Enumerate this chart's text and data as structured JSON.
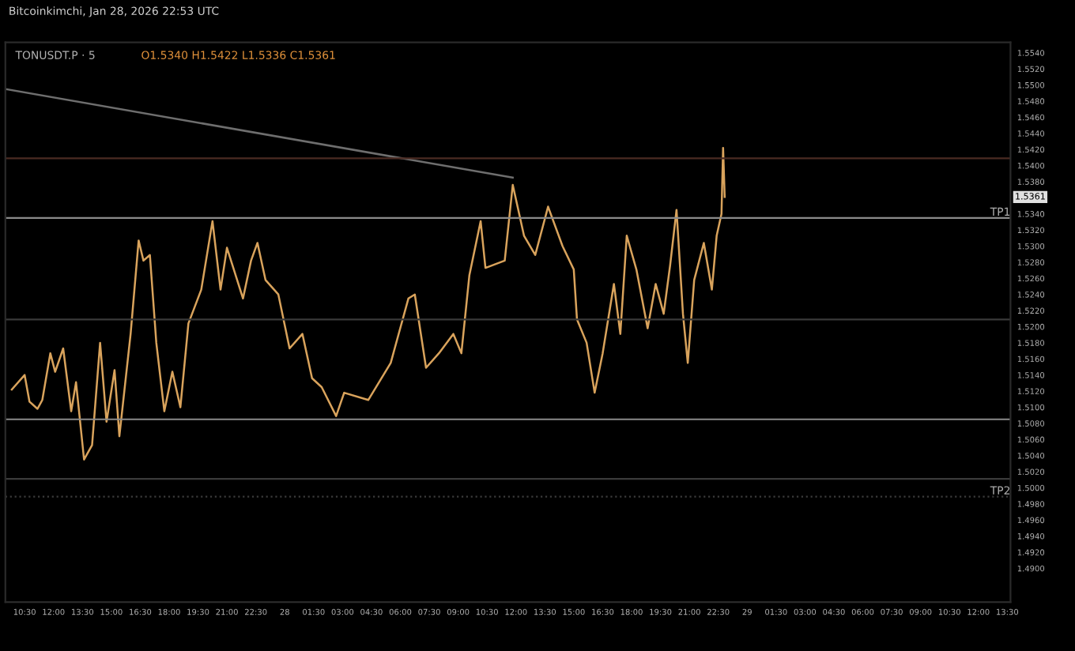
{
  "chart_data": {
    "type": "line",
    "title": "TONUSDT.P · 5",
    "subtitle": "O1.5340 H1.5422 L1.5336 C1.5361",
    "annotations": [
      "Bitcoinkimchi, Jan 28, 2026 22:53 UTC",
      "1.5361"
    ],
    "series": [
      {
        "color": "#d9a35c",
        "x": [
          "2026-01-27T09:50",
          "2026-01-27T10:30",
          "2026-01-27T10:45",
          "2026-01-27T11:10",
          "2026-01-27T11:25",
          "2026-01-27T11:50",
          "2026-01-27T12:05",
          "2026-01-27T12:30",
          "2026-01-27T12:55",
          "2026-01-27T13:10",
          "2026-01-27T13:35",
          "2026-01-27T14:00",
          "2026-01-27T14:25",
          "2026-01-27T14:45",
          "2026-01-27T15:10",
          "2026-01-27T15:25",
          "2026-01-27T16:00",
          "2026-01-27T16:25",
          "2026-01-27T16:40",
          "2026-01-27T17:00",
          "2026-01-27T17:20",
          "2026-01-27T17:45",
          "2026-01-27T18:10",
          "2026-01-27T18:35",
          "2026-01-27T19:00",
          "2026-01-27T19:40",
          "2026-01-27T20:15",
          "2026-01-27T20:40",
          "2026-01-27T21:00",
          "2026-01-27T21:50",
          "2026-01-27T22:15",
          "2026-01-27T22:35",
          "2026-01-27T23:00",
          "2026-01-27T23:40",
          "2026-01-28T00:15",
          "2026-01-28T00:55",
          "2026-01-28T01:25",
          "2026-01-28T01:55",
          "2026-01-28T02:40",
          "2026-01-28T03:05",
          "2026-01-28T04:20",
          "2026-01-28T05:30",
          "2026-01-28T06:25",
          "2026-01-28T06:45",
          "2026-01-28T07:20",
          "2026-01-28T08:00",
          "2026-01-28T08:45",
          "2026-01-28T09:10",
          "2026-01-28T09:35",
          "2026-01-28T10:10",
          "2026-01-28T10:25",
          "2026-01-28T11:25",
          "2026-01-28T11:50",
          "2026-01-28T12:25",
          "2026-01-28T13:00",
          "2026-01-28T13:40",
          "2026-01-28T14:25",
          "2026-01-28T15:00",
          "2026-01-28T15:10",
          "2026-01-28T15:40",
          "2026-01-28T16:05",
          "2026-01-28T16:30",
          "2026-01-28T17:05",
          "2026-01-28T17:25",
          "2026-01-28T17:45",
          "2026-01-28T18:15",
          "2026-01-28T18:50",
          "2026-01-28T19:15",
          "2026-01-28T19:40",
          "2026-01-28T20:00",
          "2026-01-28T20:20",
          "2026-01-28T20:40",
          "2026-01-28T20:55",
          "2026-01-28T21:15",
          "2026-01-28T21:45",
          "2026-01-28T22:10",
          "2026-01-28T22:25",
          "2026-01-28T22:40",
          "2026-01-28T22:45",
          "2026-01-28T22:50"
        ],
        "values": [
          1.5122,
          1.514,
          1.5107,
          1.5098,
          1.5109,
          1.5167,
          1.5144,
          1.5173,
          1.5095,
          1.5131,
          1.5035,
          1.5053,
          1.518,
          1.5082,
          1.5146,
          1.5064,
          1.5191,
          1.5307,
          1.5282,
          1.5289,
          1.518,
          1.5095,
          1.5144,
          1.51,
          1.5204,
          1.5246,
          1.5331,
          1.5246,
          1.5298,
          1.5235,
          1.5282,
          1.5304,
          1.5258,
          1.524,
          1.5173,
          1.5191,
          1.5136,
          1.5125,
          1.5089,
          1.5118,
          1.5109,
          1.5155,
          1.5235,
          1.524,
          1.5149,
          1.5167,
          1.5191,
          1.5167,
          1.5264,
          1.5331,
          1.5273,
          1.5282,
          1.5376,
          1.5313,
          1.5289,
          1.5349,
          1.53,
          1.5271,
          1.5209,
          1.518,
          1.5118,
          1.5167,
          1.5253,
          1.5191,
          1.5313,
          1.5271,
          1.5198,
          1.5253,
          1.5216,
          1.5276,
          1.5345,
          1.5216,
          1.5155,
          1.5258,
          1.5304,
          1.5246,
          1.5313,
          1.534,
          1.5422,
          1.5361
        ]
      },
      {
        "color": "#6e6e6e",
        "x": [
          "2026-01-27T09:30",
          "2026-01-28T11:50"
        ],
        "values": [
          1.5495,
          1.5385
        ]
      }
    ],
    "ref_lines": [
      {
        "axis": "y",
        "value": 1.5409,
        "color": "#4a2a22"
      },
      {
        "axis": "y",
        "value": 1.5335,
        "label": "TP1",
        "color": "#8a8a8a"
      },
      {
        "axis": "y",
        "value": 1.5209,
        "color": "#3a3a3a"
      },
      {
        "axis": "y",
        "value": 1.5085,
        "color": "#8a8a8a"
      },
      {
        "axis": "y",
        "value": 1.5011,
        "color": "#3a3a3a"
      },
      {
        "axis": "y",
        "value": 1.4989,
        "label": "TP2",
        "color": "#3a3a3a",
        "line_style": "dotted"
      }
    ],
    "xlim": [
      "2026-01-27T09:30",
      "2026-01-29T13:40"
    ],
    "xticks": [
      {
        "value": "2026-01-27T10:30",
        "label": "10:30"
      },
      {
        "value": "2026-01-27T12:00",
        "label": "12:00"
      },
      {
        "value": "2026-01-27T13:30",
        "label": "13:30"
      },
      {
        "value": "2026-01-27T15:00",
        "label": "15:00"
      },
      {
        "value": "2026-01-27T16:30",
        "label": "16:30"
      },
      {
        "value": "2026-01-27T18:00",
        "label": "18:00"
      },
      {
        "value": "2026-01-27T19:30",
        "label": "19:30"
      },
      {
        "value": "2026-01-27T21:00",
        "label": "21:00"
      },
      {
        "value": "2026-01-27T22:30",
        "label": "22:30"
      },
      {
        "value": "2026-01-28T00:00",
        "label": "28"
      },
      {
        "value": "2026-01-28T01:30",
        "label": "01:30"
      },
      {
        "value": "2026-01-28T03:00",
        "label": "03:00"
      },
      {
        "value": "2026-01-28T04:30",
        "label": "04:30"
      },
      {
        "value": "2026-01-28T06:00",
        "label": "06:00"
      },
      {
        "value": "2026-01-28T07:30",
        "label": "07:30"
      },
      {
        "value": "2026-01-28T09:00",
        "label": "09:00"
      },
      {
        "value": "2026-01-28T10:30",
        "label": "10:30"
      },
      {
        "value": "2026-01-28T12:00",
        "label": "12:00"
      },
      {
        "value": "2026-01-28T13:30",
        "label": "13:30"
      },
      {
        "value": "2026-01-28T15:00",
        "label": "15:00"
      },
      {
        "value": "2026-01-28T16:30",
        "label": "16:30"
      },
      {
        "value": "2026-01-28T18:00",
        "label": "18:00"
      },
      {
        "value": "2026-01-28T19:30",
        "label": "19:30"
      },
      {
        "value": "2026-01-28T21:00",
        "label": "21:00"
      },
      {
        "value": "2026-01-28T22:30",
        "label": "22:30"
      },
      {
        "value": "2026-01-29T00:00",
        "label": "29"
      },
      {
        "value": "2026-01-29T01:30",
        "label": "01:30"
      },
      {
        "value": "2026-01-29T03:00",
        "label": "03:00"
      },
      {
        "value": "2026-01-29T04:30",
        "label": "04:30"
      },
      {
        "value": "2026-01-29T06:00",
        "label": "06:00"
      },
      {
        "value": "2026-01-29T07:30",
        "label": "07:30"
      },
      {
        "value": "2026-01-29T09:00",
        "label": "09:00"
      },
      {
        "value": "2026-01-29T10:30",
        "label": "10:30"
      },
      {
        "value": "2026-01-29T12:00",
        "label": "12:00"
      },
      {
        "value": "2026-01-29T13:30",
        "label": "13:30"
      }
    ],
    "ylim": [
      1.4858,
      1.5553
    ],
    "yticks": [
      {
        "value": 1.49,
        "label": "1.4900"
      },
      {
        "value": 1.492,
        "label": "1.4920"
      },
      {
        "value": 1.494,
        "label": "1.4940"
      },
      {
        "value": 1.496,
        "label": "1.4960"
      },
      {
        "value": 1.498,
        "label": "1.4980"
      },
      {
        "value": 1.5,
        "label": "1.5000"
      },
      {
        "value": 1.502,
        "label": "1.5020"
      },
      {
        "value": 1.504,
        "label": "1.5040"
      },
      {
        "value": 1.506,
        "label": "1.5060"
      },
      {
        "value": 1.508,
        "label": "1.5080"
      },
      {
        "value": 1.51,
        "label": "1.5100"
      },
      {
        "value": 1.512,
        "label": "1.5120"
      },
      {
        "value": 1.514,
        "label": "1.5140"
      },
      {
        "value": 1.516,
        "label": "1.5160"
      },
      {
        "value": 1.518,
        "label": "1.5180"
      },
      {
        "value": 1.52,
        "label": "1.5200"
      },
      {
        "value": 1.522,
        "label": "1.5220"
      },
      {
        "value": 1.524,
        "label": "1.5240"
      },
      {
        "value": 1.526,
        "label": "1.5260"
      },
      {
        "value": 1.528,
        "label": "1.5280"
      },
      {
        "value": 1.53,
        "label": "1.5300"
      },
      {
        "value": 1.532,
        "label": "1.5320"
      },
      {
        "value": 1.534,
        "label": "1.5340"
      },
      {
        "value": 1.538,
        "label": "1.5380"
      },
      {
        "value": 1.54,
        "label": "1.5400"
      },
      {
        "value": 1.542,
        "label": "1.5420"
      },
      {
        "value": 1.544,
        "label": "1.5440"
      },
      {
        "value": 1.546,
        "label": "1.5460"
      },
      {
        "value": 1.548,
        "label": "1.5480"
      },
      {
        "value": 1.55,
        "label": "1.5500"
      },
      {
        "value": 1.552,
        "label": "1.5520"
      },
      {
        "value": 1.554,
        "label": "1.5540"
      }
    ],
    "marker": "none",
    "line_style": "solid",
    "grid": false
  }
}
